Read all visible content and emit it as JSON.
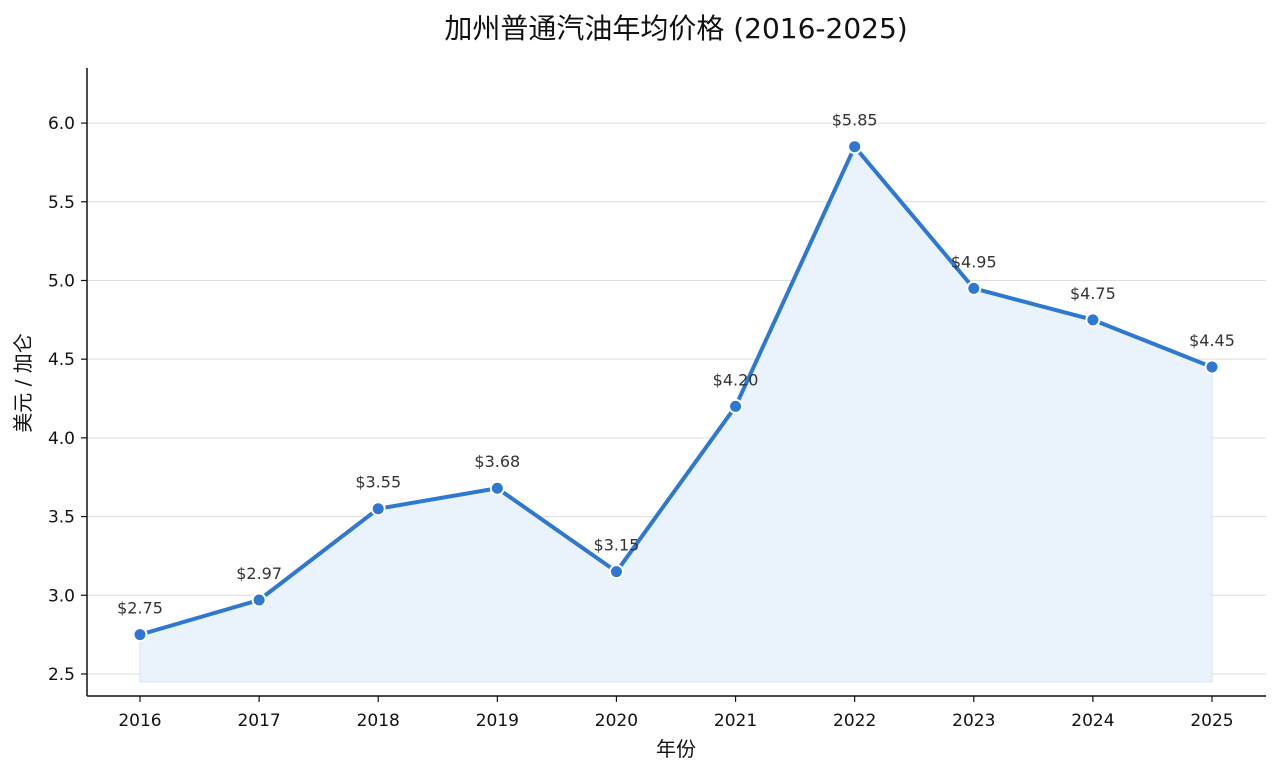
{
  "chart_data": {
    "type": "line",
    "title": "加州普通汽油年均价格 (2016-2025)",
    "xlabel": "年份",
    "ylabel": "美元 / 加仑",
    "categories": [
      "2016",
      "2017",
      "2018",
      "2019",
      "2020",
      "2021",
      "2022",
      "2023",
      "2024",
      "2025"
    ],
    "values": [
      2.75,
      2.97,
      3.55,
      3.68,
      3.15,
      4.2,
      5.85,
      4.95,
      4.75,
      4.45
    ],
    "data_labels": [
      "$2.75",
      "$2.97",
      "$3.55",
      "$3.68",
      "$3.15",
      "$4.20",
      "$5.85",
      "$4.95",
      "$4.75",
      "$4.45"
    ],
    "yticks": [
      "2.5",
      "3.0",
      "3.5",
      "4.0",
      "4.5",
      "5.0",
      "5.5",
      "6.0"
    ],
    "ylim": [
      2.36,
      6.35
    ],
    "fill_baseline": 2.45,
    "grid": "horizontal",
    "line_color": "#2e78d2",
    "fill_color": "#eaf2fb"
  }
}
